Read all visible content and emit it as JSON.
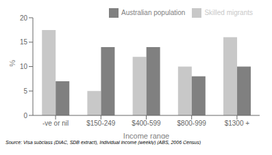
{
  "chart_data": {
    "type": "bar",
    "categories": [
      "-ve or nil",
      "$150-249",
      "$400-599",
      "$800-999",
      "$1300 +"
    ],
    "series": [
      {
        "name": "Skilled migrants",
        "color": "#c8c8c8",
        "values": [
          17.5,
          5.0,
          12.0,
          10.0,
          16.0
        ]
      },
      {
        "name": "Australian population",
        "color": "#808080",
        "values": [
          7.0,
          14.0,
          14.0,
          8.0,
          10.0
        ]
      }
    ],
    "xlabel": "Income range",
    "ylabel": "%",
    "ylim": [
      0,
      20
    ],
    "yticks": [
      0,
      5,
      10,
      15,
      20
    ],
    "grid": false,
    "legend": "upper right",
    "annotations": [
      "Source: Visa subclass (DIAC, SDB extract), Individual income (weekly) (ABS, 2006 Census)"
    ]
  }
}
